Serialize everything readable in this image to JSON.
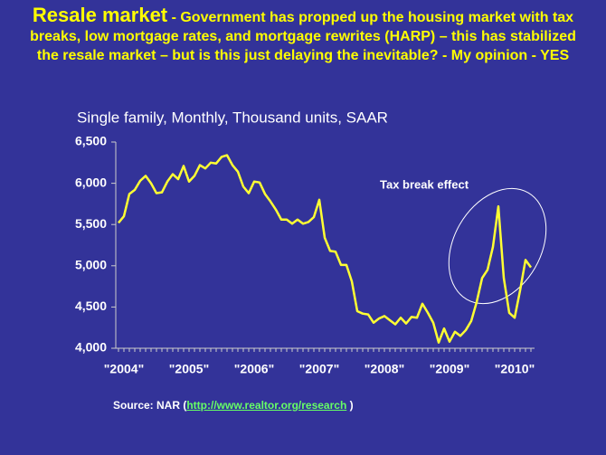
{
  "chart_data": {
    "type": "line",
    "title": "Resale market",
    "subtitle": " - Government has propped up the housing market  with tax breaks, low mortgage rates, and mortgage rewrites (HARP) – this has stabilized the resale market  – but is this just delaying the inevitable?  - My opinion - YES",
    "chart_title": "Single family, Monthly, Thousand units, SAAR",
    "annotation": "Tax break effect",
    "source_prefix": "Source: NAR (",
    "source_link": "http://www.realtor.org/research",
    "source_suffix": " )",
    "categories": [
      "\"2004\"",
      null,
      null,
      null,
      null,
      null,
      null,
      null,
      null,
      null,
      null,
      null,
      "\"2005\"",
      null,
      null,
      null,
      null,
      null,
      null,
      null,
      null,
      null,
      null,
      null,
      "\"2006\"",
      null,
      null,
      null,
      null,
      null,
      null,
      null,
      null,
      null,
      null,
      null,
      "\"2007\"",
      null,
      null,
      null,
      null,
      null,
      null,
      null,
      null,
      null,
      null,
      null,
      "\"2008\"",
      null,
      null,
      null,
      null,
      null,
      null,
      null,
      null,
      null,
      null,
      null,
      "\"2009\"",
      null,
      null,
      null,
      null,
      null,
      null,
      null,
      null,
      null,
      null,
      null,
      "\"2010\"",
      null,
      null,
      null,
      null
    ],
    "values": [
      5520,
      5600,
      5870,
      5920,
      6030,
      6090,
      6000,
      5880,
      5890,
      6020,
      6110,
      6050,
      6210,
      6020,
      6090,
      6220,
      6180,
      6250,
      6240,
      6320,
      6340,
      6220,
      6140,
      5960,
      5880,
      6020,
      6010,
      5870,
      5780,
      5680,
      5560,
      5560,
      5510,
      5560,
      5510,
      5530,
      5590,
      5800,
      5340,
      5180,
      5170,
      5010,
      5010,
      4810,
      4450,
      4420,
      4410,
      4310,
      4360,
      4390,
      4340,
      4290,
      4370,
      4300,
      4380,
      4370,
      4540,
      4430,
      4310,
      4070,
      4240,
      4080,
      4200,
      4150,
      4220,
      4330,
      4560,
      4850,
      4950,
      5230,
      5720,
      4850,
      4430,
      4370,
      4700,
      5070,
      4980
    ],
    "color": "#ffff33",
    "ylim": [
      4000,
      6500
    ],
    "yticks": [
      {
        "value": 4000,
        "label": "4,000"
      },
      {
        "value": 4500,
        "label": "4,500"
      },
      {
        "value": 5000,
        "label": "5,000"
      },
      {
        "value": 5500,
        "label": "5,500"
      },
      {
        "value": 6000,
        "label": "6,000"
      },
      {
        "value": 6500,
        "label": "6,500"
      }
    ],
    "grid": false
  }
}
